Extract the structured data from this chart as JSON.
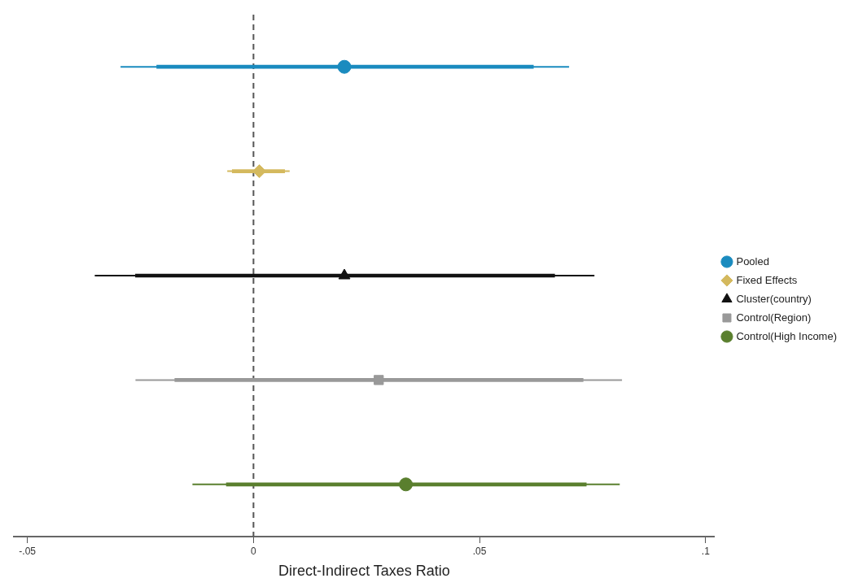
{
  "chart_data": {
    "type": "scatter",
    "orientation": "horizontal",
    "xlabel": "Direct-Indirect Taxes Ratio",
    "categories": [
      null,
      null,
      null,
      null,
      null
    ],
    "series": [
      {
        "name": "Pooled",
        "color": "#1a8bbf",
        "marker": "circle",
        "values": [
          0.0201,
          null,
          null,
          null,
          null
        ],
        "errors": [
          [
            -0.0294,
            0.0698
          ],
          null,
          null,
          null,
          null
        ]
      },
      {
        "name": "Fixed Effects",
        "color": "#d4b95e",
        "marker": "diamond",
        "values": [
          null,
          0.0013,
          null,
          null,
          null
        ],
        "errors": [
          null,
          [
            -0.0058,
            0.008
          ],
          null,
          null,
          null
        ]
      },
      {
        "name": "Cluster(country)",
        "color": "#111111",
        "marker": "triangle",
        "values": [
          null,
          null,
          0.0201,
          null,
          null
        ],
        "errors": [
          null,
          null,
          [
            -0.0351,
            0.0754
          ],
          null,
          null
        ]
      },
      {
        "name": "Control(Region)",
        "color": "#999999",
        "marker": "square",
        "values": [
          null,
          null,
          null,
          0.0277,
          null
        ],
        "errors": [
          null,
          null,
          null,
          [
            -0.0261,
            0.0815
          ],
          null
        ]
      },
      {
        "name": "Control(High Income)",
        "color": "#5a7f2e",
        "marker": "circle",
        "values": [
          null,
          null,
          null,
          null,
          0.0337
        ],
        "errors": [
          null,
          null,
          null,
          null,
          [
            -0.0135,
            0.081
          ]
        ]
      },
      {
        "type": "bar",
        "colors": [
          "#1a8bbf",
          "#d4b95e",
          "#111111",
          "#999999",
          "#5a7f2e"
        ],
        "base": [
          -0.0214,
          -0.0047,
          -0.0261,
          -0.0174,
          -0.006
        ],
        "values": [
          0.0833,
          0.0116,
          0.0927,
          0.0903,
          0.0796
        ]
      }
    ],
    "xlim": [
      -0.053,
      0.102
    ],
    "xticks": [
      {
        "value": -0.05,
        "label": "-.05"
      },
      0,
      {
        "value": 0.05,
        "label": ".05"
      },
      {
        "value": 0.1,
        "label": ".1"
      }
    ],
    "ref_lines": [
      {
        "axis": "x",
        "value": 0,
        "color": "#555555",
        "line_style": "dashed"
      }
    ],
    "grid": false,
    "legend": "right",
    "tick_labels": "x"
  }
}
